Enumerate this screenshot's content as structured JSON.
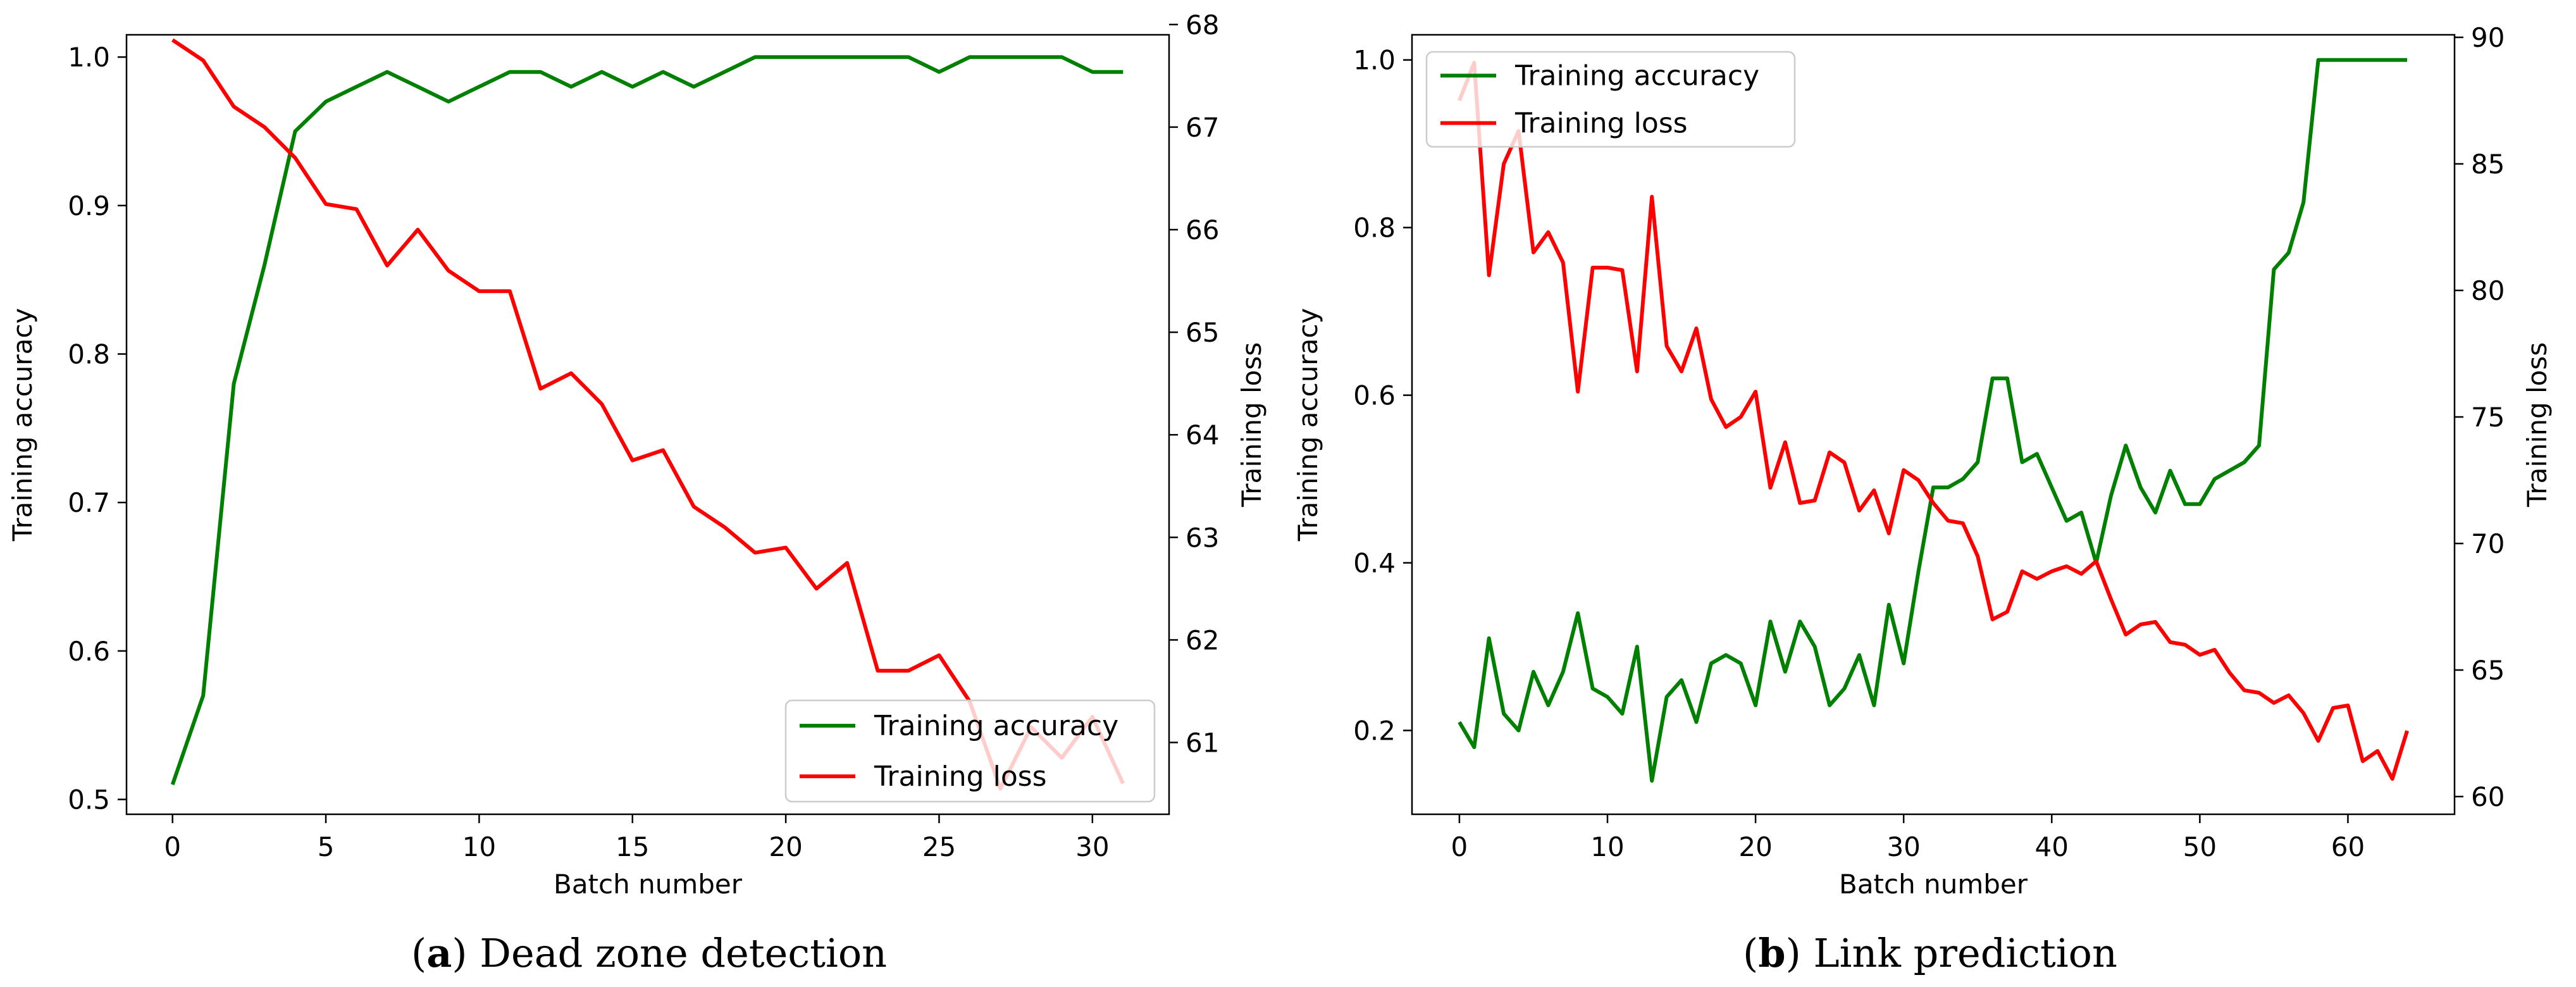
{
  "colors": {
    "accuracy": "#008000",
    "loss": "#ff0000"
  },
  "captions": [
    {
      "label": "a",
      "text": "Dead zone detection"
    },
    {
      "label": "b",
      "text": "Link prediction"
    }
  ],
  "chart_data": [
    {
      "type": "line",
      "title": "",
      "xlabel": "Batch number",
      "ylabel": "Training accuracy",
      "y2label": "Training loss",
      "xlim": [
        -1.5,
        32.5
      ],
      "ylim": [
        0.49,
        1.015
      ],
      "y2lim": [
        60.3,
        67.9
      ],
      "xticks": [
        0,
        5,
        10,
        15,
        20,
        25,
        30
      ],
      "yticks": [
        0.5,
        0.6,
        0.7,
        0.8,
        0.9,
        1.0
      ],
      "y2ticks": [
        61,
        62,
        63,
        64,
        65,
        66,
        67,
        68
      ],
      "legend_position": "lower-right",
      "x": [
        0,
        1,
        2,
        3,
        4,
        5,
        6,
        7,
        8,
        9,
        10,
        11,
        12,
        13,
        14,
        15,
        16,
        17,
        18,
        19,
        20,
        21,
        22,
        23,
        24,
        25,
        26,
        27,
        28,
        29,
        30,
        31
      ],
      "series": [
        {
          "name": "Training accuracy",
          "axis": "left",
          "color": "#008000",
          "values": [
            0.51,
            0.57,
            0.78,
            0.86,
            0.95,
            0.97,
            0.98,
            0.99,
            0.98,
            0.97,
            0.98,
            0.99,
            0.99,
            0.98,
            0.99,
            0.98,
            0.99,
            0.98,
            0.99,
            1.0,
            1.0,
            1.0,
            1.0,
            1.0,
            1.0,
            0.99,
            1.0,
            1.0,
            1.0,
            1.0,
            0.99,
            0.99
          ]
        },
        {
          "name": "Training loss",
          "axis": "right",
          "color": "#ff0000",
          "values": [
            67.85,
            67.65,
            67.2,
            67.0,
            66.7,
            66.25,
            66.2,
            65.65,
            66.0,
            65.6,
            65.4,
            65.4,
            64.45,
            64.6,
            64.3,
            63.75,
            63.85,
            63.3,
            63.1,
            62.85,
            62.9,
            62.5,
            62.75,
            61.7,
            61.7,
            61.85,
            61.4,
            60.55,
            61.15,
            60.85,
            61.25,
            60.6
          ]
        }
      ]
    },
    {
      "type": "line",
      "title": "",
      "xlabel": "Batch number",
      "ylabel": "Training accuracy",
      "y2label": "Training loss",
      "xlim": [
        -3.2,
        67.2
      ],
      "ylim": [
        0.1,
        1.03
      ],
      "y2lim": [
        59.3,
        90.1
      ],
      "xticks": [
        0,
        10,
        20,
        30,
        40,
        50,
        60
      ],
      "yticks": [
        0.2,
        0.4,
        0.6,
        0.8,
        1.0
      ],
      "y2ticks": [
        60,
        65,
        70,
        75,
        80,
        85,
        90
      ],
      "legend_position": "upper-left",
      "x": [
        0,
        1,
        2,
        3,
        4,
        5,
        6,
        7,
        8,
        9,
        10,
        11,
        12,
        13,
        14,
        15,
        16,
        17,
        18,
        19,
        20,
        21,
        22,
        23,
        24,
        25,
        26,
        27,
        28,
        29,
        30,
        31,
        32,
        33,
        34,
        35,
        36,
        37,
        38,
        39,
        40,
        41,
        42,
        43,
        44,
        45,
        46,
        47,
        48,
        49,
        50,
        51,
        52,
        53,
        54,
        55,
        56,
        57,
        58,
        59,
        60,
        61,
        62,
        63,
        64
      ],
      "series": [
        {
          "name": "Training accuracy",
          "axis": "left",
          "color": "#008000",
          "values": [
            0.21,
            0.18,
            0.31,
            0.22,
            0.2,
            0.27,
            0.23,
            0.27,
            0.34,
            0.25,
            0.24,
            0.22,
            0.3,
            0.14,
            0.24,
            0.26,
            0.21,
            0.28,
            0.29,
            0.28,
            0.23,
            0.33,
            0.27,
            0.33,
            0.3,
            0.23,
            0.25,
            0.29,
            0.23,
            0.35,
            0.28,
            0.39,
            0.49,
            0.49,
            0.5,
            0.52,
            0.62,
            0.62,
            0.52,
            0.53,
            0.49,
            0.45,
            0.46,
            0.4,
            0.48,
            0.54,
            0.49,
            0.46,
            0.51,
            0.47,
            0.47,
            0.5,
            0.51,
            0.52,
            0.54,
            0.75,
            0.77,
            0.83,
            1.0,
            1.0,
            1.0,
            1.0,
            1.0,
            1.0,
            1.0
          ]
        },
        {
          "name": "Training loss",
          "axis": "right",
          "color": "#ff0000",
          "values": [
            87.5,
            89.0,
            80.6,
            85.0,
            86.3,
            81.5,
            82.3,
            81.1,
            76.0,
            80.9,
            80.9,
            80.8,
            76.8,
            83.7,
            77.8,
            76.8,
            78.5,
            75.7,
            74.6,
            75.0,
            76.0,
            72.2,
            74.0,
            71.6,
            71.7,
            73.6,
            73.2,
            71.3,
            72.1,
            70.4,
            72.9,
            72.5,
            71.6,
            70.9,
            70.8,
            69.5,
            67.0,
            67.3,
            68.9,
            68.6,
            68.9,
            69.1,
            68.8,
            69.3,
            67.8,
            66.4,
            66.8,
            66.9,
            66.1,
            66.0,
            65.6,
            65.8,
            64.9,
            64.2,
            64.1,
            63.7,
            64.0,
            63.3,
            62.2,
            63.5,
            63.6,
            61.4,
            61.8,
            60.7,
            62.6
          ]
        }
      ]
    }
  ]
}
